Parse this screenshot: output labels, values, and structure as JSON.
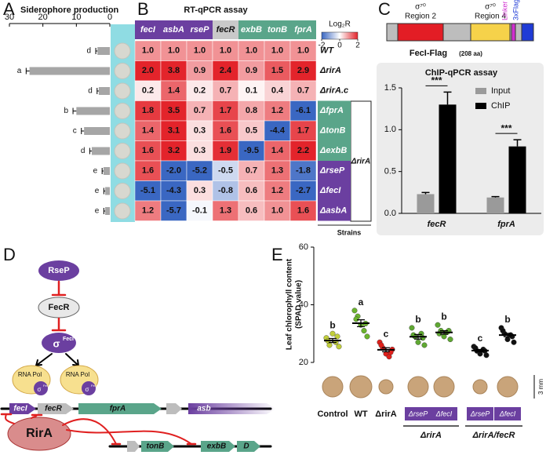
{
  "panel_labels": [
    "A",
    "B",
    "C",
    "D",
    "E"
  ],
  "chart_data": [
    {
      "type": "bar",
      "orientation": "horizontal",
      "title": "Siderophore production",
      "categories": [
        null,
        null,
        null,
        null,
        null,
        null,
        null,
        null,
        null
      ],
      "values": [
        3.7,
        24,
        3.3,
        10,
        7.7,
        5.4,
        1.9,
        1.4,
        1.4
      ],
      "errors": [
        0.5,
        1,
        0.5,
        1,
        0.8,
        0.6,
        0.4,
        0.4,
        0.4
      ],
      "annotations": [
        "d",
        "a",
        "d",
        "b",
        "c",
        "d",
        "e",
        "e",
        "e"
      ],
      "color": "#a6a6a6",
      "xlim": [
        0,
        30
      ],
      "x_reversed": true,
      "xticks": [
        0,
        10,
        20,
        30
      ]
    },
    {
      "type": "heatmap",
      "title": "RT-qPCR assay",
      "columns": [
        "fecI",
        "asbA",
        "rseP",
        "fecR",
        "exbB",
        "tonB",
        "fprA"
      ],
      "column_colors": [
        "#6b3fa0",
        "#6b3fa0",
        "#6b3fa0",
        "#c9c9c9",
        "#5aa58a",
        "#5aa58a",
        "#5aa58a"
      ],
      "rows": [
        "WT",
        "ΔrirA",
        "ΔrirA.c",
        "ΔfprA",
        "ΔtonB",
        "ΔexbB",
        "ΔrseP",
        "ΔfecI",
        "ΔasbA"
      ],
      "values": [
        [
          1,
          1,
          1,
          1,
          1,
          1,
          1
        ],
        [
          2,
          3.8,
          0.9,
          2.4,
          0.9,
          1.5,
          2.9
        ],
        [
          0.2,
          1.4,
          0.2,
          0.7,
          0.1,
          0.4,
          0.7
        ],
        [
          1.8,
          3.5,
          0.7,
          1.7,
          0.8,
          1.2,
          -6.1
        ],
        [
          1.4,
          3.1,
          0.3,
          1.6,
          0.5,
          -4.4,
          1.7
        ],
        [
          1.6,
          3.2,
          0.3,
          1.9,
          -9.5,
          1.4,
          2.2
        ],
        [
          1.6,
          -2,
          -5.2,
          -0.5,
          0.7,
          1.3,
          -1.8
        ],
        [
          -5.1,
          -4.3,
          0.3,
          -0.8,
          0.6,
          1.2,
          -2.7
        ],
        [
          1.2,
          -5.7,
          -0.1,
          1.3,
          0.6,
          1,
          1.6
        ]
      ],
      "value_labels": [
        [
          "1.0",
          "1.0",
          "1.0",
          "1.0",
          "1.0",
          "1.0",
          "1.0"
        ],
        [
          "2.0",
          "3.8",
          "0.9",
          "2.4",
          "0.9",
          "1.5",
          "2.9"
        ],
        [
          "0.2",
          "1.4",
          "0.2",
          "0.7",
          "0.1",
          "0.4",
          "0.7"
        ],
        [
          "1.8",
          "3.5",
          "0.7",
          "1.7",
          "0.8",
          "1.2",
          "-6.1"
        ],
        [
          "1.4",
          "3.1",
          "0.3",
          "1.6",
          "0.5",
          "-4.4",
          "1.7"
        ],
        [
          "1.6",
          "3.2",
          "0.3",
          "1.9",
          "-9.5",
          "1.4",
          "2.2"
        ],
        [
          "1.6",
          "-2.0",
          "-5.2",
          "-0.5",
          "0.7",
          "1.3",
          "-1.8"
        ],
        [
          "-5.1",
          "-4.3",
          "0.3",
          "-0.8",
          "0.6",
          "1.2",
          "-2.7"
        ],
        [
          "1.2",
          "-5.7",
          "-0.1",
          "1.3",
          "0.6",
          "1.0",
          "1.6"
        ]
      ],
      "colorbar": {
        "title": "Log₂R",
        "range": [
          -2,
          2
        ],
        "ticks": [
          -2,
          0,
          2
        ],
        "colors": [
          "#3a67c2",
          "#ffffff",
          "#e3242b"
        ]
      },
      "row_group": "ΔrirA",
      "row_axis_title": "Strains"
    },
    {
      "type": "bar",
      "title": "ChIP-qPCR assay",
      "categories": [
        "fecR",
        "fprA"
      ],
      "series": [
        {
          "name": "Input",
          "color": "#9a9a9a",
          "values": [
            0.23,
            0.19
          ],
          "errors": [
            0.02,
            0.01
          ]
        },
        {
          "name": "ChIP",
          "color": "#000000",
          "values": [
            1.3,
            0.8
          ],
          "errors": [
            0.15,
            0.08
          ]
        }
      ],
      "annotations": [
        "***",
        "***"
      ],
      "ylim": [
        0,
        1.5
      ],
      "yticks": [
        {
          "value": 0,
          "label": "0.0"
        },
        {
          "value": 0.5,
          "label": "0.5"
        },
        {
          "value": 1,
          "label": "1.0"
        },
        {
          "value": 1.5,
          "label": "1.5"
        }
      ],
      "legend": "upper right"
    },
    {
      "type": "strip",
      "ylabel": [
        "Leaf chlorophyll content",
        "(SPAD value)"
      ],
      "categories": [
        "Control",
        "WT",
        "ΔrirA",
        "ΔrseP",
        "ΔfecI",
        "ΔrseP",
        "ΔfecI"
      ],
      "colors": [
        "#c2cf3a",
        "#6cb42e",
        "#e0201b",
        "#5fa832",
        "#5fa832",
        "#111111",
        "#111111"
      ],
      "values": [
        [
          28.5,
          26,
          30,
          27,
          25.5,
          27.5,
          29
        ],
        [
          38,
          36,
          33,
          31,
          29,
          35,
          33.5
        ],
        [
          27,
          25,
          23,
          22,
          24.5,
          26,
          23.5
        ],
        [
          32,
          29,
          27,
          30,
          26,
          29.5,
          28.5
        ],
        [
          33,
          31,
          29,
          30.5,
          28,
          30,
          31
        ],
        [
          25.5,
          24,
          23,
          24.5,
          22.5,
          25,
          24
        ],
        [
          32,
          30,
          28,
          29.5,
          27,
          31,
          29
        ]
      ],
      "means": [
        27.6,
        33.6,
        24.4,
        28.9,
        30.4,
        24.1,
        29.5
      ],
      "errors": [
        0.7,
        1.2,
        0.7,
        0.8,
        0.6,
        0.4,
        0.6
      ],
      "annotations": [
        "b",
        "a",
        "c",
        "b",
        "b",
        "c",
        "b"
      ],
      "group_labels": [
        "ΔrirA",
        "ΔrirA/fecR"
      ],
      "ylim": [
        20,
        60
      ],
      "yticks": [
        20,
        40,
        60
      ]
    }
  ],
  "protein_map": {
    "domains": [
      {
        "symbol": "σ⁷⁰",
        "label": "Region 2"
      },
      {
        "symbol": "σ⁷⁰",
        "label": "Region 4"
      }
    ],
    "linker": "Linker",
    "tag": "3xFlag",
    "name": "FecI-Flag",
    "length": "(208 aa)"
  },
  "pathway": {
    "regulators": [
      "RseP",
      "FecR"
    ],
    "sigma": {
      "symbol": "σ",
      "superscript": "FecI"
    },
    "polymerase": [
      "RNA Pol",
      "RNA Pol"
    ],
    "genes": [
      "fecI",
      "fecR",
      "fprA",
      "asb",
      "tonB",
      "exbB",
      "D"
    ],
    "repressor": "RirA"
  },
  "scale_bar": "3 mm"
}
